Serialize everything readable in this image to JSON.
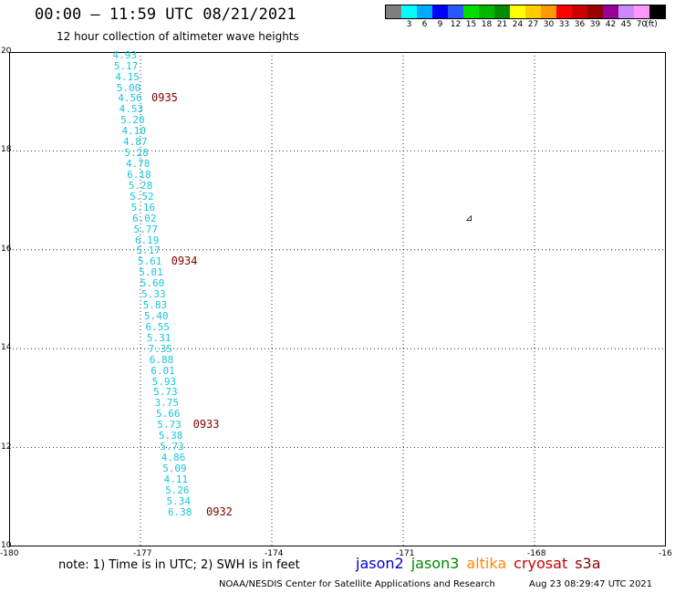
{
  "header": {
    "title": "00:00 – 11:59 UTC 08/21/2021",
    "subtitle": "12 hour collection of altimeter wave heights"
  },
  "colorbar": {
    "unit": "(ft)",
    "cells": [
      {
        "color": "#7f7f7f",
        "label": ""
      },
      {
        "color": "#00ffff",
        "label": "3"
      },
      {
        "color": "#00aaff",
        "label": "6"
      },
      {
        "color": "#0000ff",
        "label": "9"
      },
      {
        "color": "#2a56ff",
        "label": "12"
      },
      {
        "color": "#00dd00",
        "label": "15"
      },
      {
        "color": "#00b800",
        "label": "18"
      },
      {
        "color": "#008a00",
        "label": "21"
      },
      {
        "color": "#ffff00",
        "label": "24"
      },
      {
        "color": "#ffcc00",
        "label": "27"
      },
      {
        "color": "#ff9900",
        "label": "30"
      },
      {
        "color": "#ff0000",
        "label": "33"
      },
      {
        "color": "#cc0000",
        "label": "36"
      },
      {
        "color": "#990000",
        "label": "39"
      },
      {
        "color": "#990099",
        "label": "42"
      },
      {
        "color": "#cc88ff",
        "label": "45"
      },
      {
        "color": "#ff99ff",
        "label": "70"
      },
      {
        "color": "#000000",
        "label": ""
      }
    ]
  },
  "map": {
    "lat_ticks": [
      "20",
      "18",
      "16",
      "14",
      "12",
      "10"
    ],
    "lon_ticks": [
      "-180",
      "-177",
      "-174",
      "-171",
      "-168",
      "-16"
    ],
    "island_symbol": "⊿",
    "swh_track": [
      {
        "lat": 19.93,
        "lon": -177.36,
        "value": "4.93"
      },
      {
        "lat": 19.71,
        "lon": -177.33,
        "value": "5.17"
      },
      {
        "lat": 19.49,
        "lon": -177.3,
        "value": "4.15"
      },
      {
        "lat": 19.27,
        "lon": -177.27,
        "value": "5.00"
      },
      {
        "lat": 19.05,
        "lon": -177.24,
        "value": "4.56"
      },
      {
        "lat": 18.83,
        "lon": -177.21,
        "value": "4.53"
      },
      {
        "lat": 18.61,
        "lon": -177.18,
        "value": "5.20"
      },
      {
        "lat": 18.39,
        "lon": -177.15,
        "value": "4.10"
      },
      {
        "lat": 18.17,
        "lon": -177.12,
        "value": "4.87"
      },
      {
        "lat": 17.95,
        "lon": -177.09,
        "value": "5.28"
      },
      {
        "lat": 17.73,
        "lon": -177.06,
        "value": "4.78"
      },
      {
        "lat": 17.51,
        "lon": -177.03,
        "value": "6.18"
      },
      {
        "lat": 17.29,
        "lon": -177.0,
        "value": "5.28"
      },
      {
        "lat": 17.07,
        "lon": -176.97,
        "value": "5.52"
      },
      {
        "lat": 16.85,
        "lon": -176.94,
        "value": "5.16"
      },
      {
        "lat": 16.63,
        "lon": -176.91,
        "value": "6.02"
      },
      {
        "lat": 16.41,
        "lon": -176.88,
        "value": "5.77"
      },
      {
        "lat": 16.19,
        "lon": -176.85,
        "value": "6.19"
      },
      {
        "lat": 15.97,
        "lon": -176.82,
        "value": "5.17"
      },
      {
        "lat": 15.75,
        "lon": -176.79,
        "value": "5.61"
      },
      {
        "lat": 15.53,
        "lon": -176.76,
        "value": "5.01"
      },
      {
        "lat": 15.31,
        "lon": -176.73,
        "value": "5.60"
      },
      {
        "lat": 15.09,
        "lon": -176.7,
        "value": "5.33"
      },
      {
        "lat": 14.87,
        "lon": -176.67,
        "value": "5.83"
      },
      {
        "lat": 14.65,
        "lon": -176.64,
        "value": "5.40"
      },
      {
        "lat": 14.43,
        "lon": -176.61,
        "value": "6.55"
      },
      {
        "lat": 14.21,
        "lon": -176.58,
        "value": "5.31"
      },
      {
        "lat": 13.99,
        "lon": -176.55,
        "value": "7.35"
      },
      {
        "lat": 13.77,
        "lon": -176.52,
        "value": "6.88"
      },
      {
        "lat": 13.55,
        "lon": -176.49,
        "value": "6.01"
      },
      {
        "lat": 13.33,
        "lon": -176.46,
        "value": "5.93"
      },
      {
        "lat": 13.11,
        "lon": -176.43,
        "value": "5.73"
      },
      {
        "lat": 12.89,
        "lon": -176.4,
        "value": "3.75"
      },
      {
        "lat": 12.67,
        "lon": -176.37,
        "value": "5.66"
      },
      {
        "lat": 12.45,
        "lon": -176.34,
        "value": "5.73"
      },
      {
        "lat": 12.23,
        "lon": -176.31,
        "value": "5.38"
      },
      {
        "lat": 12.01,
        "lon": -176.28,
        "value": "5.73"
      },
      {
        "lat": 11.79,
        "lon": -176.25,
        "value": "4.86"
      },
      {
        "lat": 11.57,
        "lon": -176.22,
        "value": "5.09"
      },
      {
        "lat": 11.35,
        "lon": -176.19,
        "value": "4.11"
      },
      {
        "lat": 11.13,
        "lon": -176.16,
        "value": "5.26"
      },
      {
        "lat": 10.91,
        "lon": -176.13,
        "value": "5.34"
      },
      {
        "lat": 10.69,
        "lon": -176.1,
        "value": "6.38"
      }
    ],
    "time_flags": [
      {
        "lat": 19.05,
        "lon": -176.75,
        "value": "0935"
      },
      {
        "lat": 15.75,
        "lon": -176.3,
        "value": "0934"
      },
      {
        "lat": 12.45,
        "lon": -175.8,
        "value": "0933"
      },
      {
        "lat": 10.69,
        "lon": -175.5,
        "value": "0932"
      }
    ]
  },
  "footer": {
    "note": "note: 1) Time is in UTC; 2) SWH is in feet",
    "missions": [
      {
        "name": "jason2",
        "color": "#0000cc"
      },
      {
        "name": "jason3",
        "color": "#008800"
      },
      {
        "name": "altika",
        "color": "#ff8800"
      },
      {
        "name": "cryosat",
        "color": "#cc0000"
      },
      {
        "name": "s3a",
        "color": "#880000"
      }
    ],
    "organization": "NOAA/NESDIS Center for Satellite Applications and Research",
    "timestamp": "Aug 23 08:29:47 UTC 2021"
  }
}
